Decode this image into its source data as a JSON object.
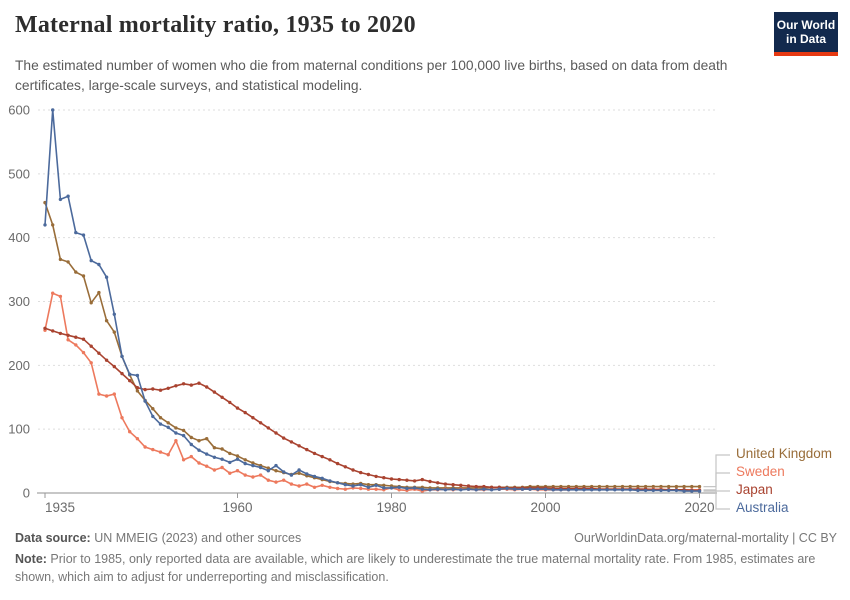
{
  "header": {
    "title": "Maternal mortality ratio, 1935 to 2020",
    "subtitle": "The estimated number of women who die from maternal conditions per 100,000 live births, based on data from death certificates, large-scale surveys, and statistical modeling.",
    "logo": {
      "line1": "Our World",
      "line2": "in Data",
      "bg_color": "#12294d",
      "accent_color": "#E63912"
    }
  },
  "chart_data": {
    "type": "line",
    "title": "Maternal mortality ratio, 1935 to 2020",
    "ylabel": "",
    "xlabel": "",
    "ylim": [
      0,
      600
    ],
    "yticks": [
      0,
      100,
      200,
      300,
      400,
      500,
      600
    ],
    "xticks": [
      1935,
      1960,
      1980,
      2000,
      2020
    ],
    "grid": "dashed-horizontal",
    "legend_position": "right-of-line-ends",
    "x": [
      1935,
      1936,
      1937,
      1938,
      1939,
      1940,
      1941,
      1942,
      1943,
      1944,
      1945,
      1946,
      1947,
      1948,
      1949,
      1950,
      1951,
      1952,
      1953,
      1954,
      1955,
      1956,
      1957,
      1958,
      1959,
      1960,
      1961,
      1962,
      1963,
      1964,
      1965,
      1966,
      1967,
      1968,
      1969,
      1970,
      1971,
      1972,
      1973,
      1974,
      1975,
      1976,
      1977,
      1978,
      1979,
      1980,
      1981,
      1982,
      1983,
      1984,
      1985,
      1986,
      1987,
      1988,
      1989,
      1990,
      1991,
      1992,
      1993,
      1994,
      1995,
      1996,
      1997,
      1998,
      1999,
      2000,
      2001,
      2002,
      2003,
      2004,
      2005,
      2006,
      2007,
      2008,
      2009,
      2010,
      2011,
      2012,
      2013,
      2014,
      2015,
      2016,
      2017,
      2018,
      2019,
      2020
    ],
    "series": [
      {
        "name": "United Kingdom",
        "color": "#996D39",
        "values": [
          455,
          420,
          366,
          362,
          346,
          340,
          298,
          314,
          270,
          252,
          214,
          185,
          160,
          145,
          132,
          118,
          110,
          102,
          98,
          87,
          82,
          85,
          71,
          69,
          62,
          58,
          52,
          47,
          43,
          39,
          35,
          32,
          29,
          31,
          27,
          24,
          21,
          18,
          16,
          15,
          14,
          15,
          13,
          13,
          12,
          11,
          10,
          9,
          9,
          9,
          8,
          8,
          8,
          8,
          8,
          8,
          8,
          8,
          9,
          9,
          9,
          9,
          9,
          10,
          10,
          10,
          10,
          10,
          10,
          10,
          10,
          10,
          10,
          10,
          10,
          10,
          10,
          10,
          10,
          10,
          10,
          10,
          10,
          10,
          10,
          10
        ]
      },
      {
        "name": "Sweden",
        "color": "#ED795D",
        "values": [
          255,
          313,
          308,
          240,
          232,
          220,
          204,
          155,
          152,
          155,
          118,
          96,
          85,
          72,
          68,
          64,
          60,
          82,
          52,
          57,
          47,
          42,
          36,
          40,
          31,
          35,
          28,
          25,
          28,
          20,
          17,
          20,
          14,
          11,
          14,
          9,
          12,
          9,
          7,
          6,
          8,
          7,
          6,
          6,
          5,
          8,
          5,
          4,
          6,
          3,
          5,
          5,
          6,
          5,
          6,
          6,
          5,
          5,
          6,
          6,
          6,
          5,
          6,
          6,
          5,
          5,
          5,
          5,
          5,
          6,
          6,
          6,
          6,
          6,
          6,
          6,
          6,
          6,
          6,
          6,
          6,
          5,
          5,
          5,
          5,
          5
        ]
      },
      {
        "name": "Japan",
        "color": "#A94330",
        "values": [
          258,
          254,
          250,
          247,
          244,
          241,
          230,
          219,
          208,
          198,
          187,
          176,
          165,
          162,
          163,
          161,
          164,
          168,
          171,
          169,
          172,
          166,
          158,
          150,
          142,
          133,
          126,
          118,
          110,
          102,
          94,
          86,
          80,
          74,
          68,
          62,
          57,
          52,
          46,
          41,
          36,
          32,
          29,
          26,
          24,
          22,
          21,
          20,
          19,
          21,
          18,
          16,
          14,
          13,
          12,
          11,
          10,
          10,
          9,
          9,
          8,
          8,
          8,
          8,
          8,
          8,
          7,
          7,
          7,
          7,
          7,
          7,
          6,
          6,
          6,
          6,
          6,
          6,
          6,
          5,
          5,
          5,
          5,
          5,
          4,
          4
        ]
      },
      {
        "name": "Australia",
        "color": "#4C6A9C",
        "values": [
          420,
          600,
          460,
          465,
          408,
          404,
          364,
          358,
          338,
          280,
          214,
          186,
          184,
          144,
          120,
          108,
          103,
          94,
          90,
          76,
          67,
          61,
          56,
          53,
          48,
          53,
          46,
          43,
          40,
          35,
          43,
          33,
          28,
          36,
          30,
          26,
          23,
          19,
          16,
          13,
          11,
          13,
          9,
          12,
          8,
          8,
          9,
          7,
          8,
          6,
          5,
          6,
          5,
          6,
          5,
          6,
          5,
          6,
          5,
          6,
          7,
          6,
          6,
          6,
          6,
          6,
          5,
          5,
          5,
          5,
          5,
          5,
          5,
          5,
          5,
          5,
          5,
          4,
          4,
          4,
          4,
          4,
          4,
          3,
          3,
          3
        ]
      }
    ]
  },
  "footer": {
    "datasource_label": "Data source:",
    "datasource_text": " UN MMEIG (2023) and other sources",
    "attribution": "OurWorldinData.org/maternal-mortality | CC BY",
    "note_label": "Note:",
    "note_text": " Prior to 1985, only reported data are available, which are likely to underestimate the true maternal mortality rate. From 1985, estimates are shown, which aim to adjust for underreporting and misclassification."
  }
}
